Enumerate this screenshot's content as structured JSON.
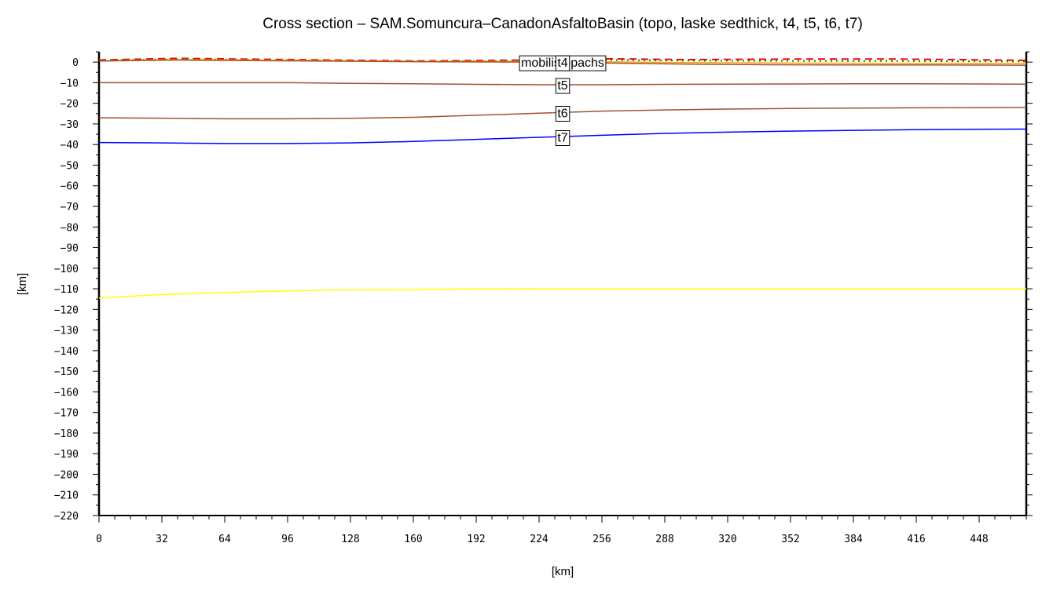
{
  "chart_data": {
    "type": "line",
    "title": "Cross section – SAM.Somuncura–CanadonAsfaltoBasin (topo, laske sedthick, t4, t5, t6, t7)",
    "xlabel": "[km]",
    "ylabel": "[km]",
    "xlim": [
      0,
      472
    ],
    "ylim": [
      -220,
      5
    ],
    "x_ticks": [
      0,
      32,
      64,
      96,
      128,
      160,
      192,
      224,
      256,
      288,
      320,
      352,
      384,
      416,
      448
    ],
    "y_ticks": [
      0,
      -10,
      -20,
      -30,
      -40,
      -50,
      -60,
      -70,
      -80,
      -90,
      -100,
      -110,
      -120,
      -130,
      -140,
      -150,
      -160,
      -170,
      -180,
      -190,
      -200,
      -210,
      -220
    ],
    "x_tick_labels": [
      "0",
      "32",
      "64",
      "96",
      "128",
      "160",
      "192",
      "224",
      "256",
      "288",
      "320",
      "352",
      "384",
      "416",
      "448"
    ],
    "y_tick_labels": [
      "0",
      "−10",
      "−20",
      "−30",
      "−40",
      "−50",
      "−60",
      "−70",
      "−80",
      "−90",
      "−100",
      "−110",
      "−120",
      "−130",
      "−140",
      "−150",
      "−160",
      "−170",
      "−180",
      "−190",
      "−200",
      "−210",
      "−220"
    ],
    "grid": false,
    "series": [
      {
        "name": "",
        "color": "#ff0000",
        "dash": "dashed",
        "x": [
          0,
          40,
          100,
          160,
          224,
          260,
          300,
          360,
          400,
          440,
          472
        ],
        "y": [
          1.0,
          1.8,
          1.2,
          0.6,
          1.0,
          1.6,
          1.2,
          1.5,
          1.5,
          1.2,
          0.8
        ]
      },
      {
        "name": "",
        "color": "#008000",
        "dash": "dotted",
        "x": [
          0,
          40,
          100,
          160,
          224,
          260,
          300,
          360,
          400,
          440,
          472
        ],
        "y": [
          0.8,
          1.4,
          0.9,
          0.4,
          0.6,
          1.0,
          0.7,
          0.6,
          0.5,
          0.4,
          0.3
        ]
      },
      {
        "name": "",
        "color": "#ffa500",
        "dash": "solid",
        "x": [
          0,
          40,
          100,
          160,
          224,
          260,
          300,
          360,
          400,
          440,
          472
        ],
        "y": [
          0.6,
          1.2,
          0.8,
          0.3,
          0.3,
          0.1,
          -0.2,
          -0.5,
          -0.6,
          -0.6,
          -0.6
        ]
      },
      {
        "name": "t4",
        "color": "#a0522d",
        "dash": "solid",
        "x": [
          0,
          40,
          100,
          160,
          224,
          260,
          300,
          340,
          380,
          420,
          472
        ],
        "y": [
          0.5,
          1.0,
          0.6,
          0.2,
          0.0,
          -0.5,
          -1.0,
          -1.3,
          -1.4,
          -1.4,
          -1.5
        ]
      },
      {
        "name": "t5",
        "color": "#a0522d",
        "dash": "solid",
        "x": [
          0,
          64,
          96,
          128,
          160,
          192,
          224,
          256,
          288,
          320,
          352,
          384,
          416,
          448,
          472
        ],
        "y": [
          -10,
          -10,
          -10,
          -10.3,
          -10.5,
          -10.8,
          -11,
          -11,
          -10.8,
          -10.7,
          -10.6,
          -10.5,
          -10.5,
          -10.6,
          -10.7
        ]
      },
      {
        "name": "t6",
        "color": "#a0522d",
        "dash": "solid",
        "x": [
          0,
          32,
          64,
          96,
          128,
          160,
          192,
          224,
          256,
          288,
          320,
          352,
          384,
          416,
          448,
          472
        ],
        "y": [
          -27,
          -27.2,
          -27.5,
          -27.5,
          -27.3,
          -26.8,
          -25.8,
          -24.8,
          -23.8,
          -23.2,
          -22.8,
          -22.5,
          -22.3,
          -22.2,
          -22.1,
          -22.0
        ]
      },
      {
        "name": "t7",
        "color": "#0000ff",
        "dash": "solid",
        "x": [
          0,
          32,
          64,
          96,
          128,
          160,
          192,
          224,
          256,
          288,
          320,
          352,
          384,
          416,
          448,
          472
        ],
        "y": [
          -39,
          -39.2,
          -39.5,
          -39.5,
          -39.2,
          -38.5,
          -37.5,
          -36.5,
          -35.5,
          -34.6,
          -34.0,
          -33.5,
          -33.1,
          -32.8,
          -32.6,
          -32.5
        ]
      },
      {
        "name": "",
        "color": "#ffff00",
        "dash": "solid",
        "x": [
          0,
          16,
          32,
          64,
          96,
          128,
          160,
          192,
          224,
          256,
          288,
          320,
          352,
          384,
          416,
          448,
          472
        ],
        "y": [
          -114.5,
          -113.6,
          -112.8,
          -111.8,
          -111.0,
          -110.5,
          -110.3,
          -110.1,
          -110.0,
          -110.0,
          -110.0,
          -110.0,
          -110.0,
          -110.0,
          -110.0,
          -110.0,
          -110.0
        ]
      }
    ],
    "annotations": [
      {
        "text": "mobilis/epachs",
        "x": 236,
        "y": 0
      },
      {
        "text": "t4",
        "x": 236,
        "y": 0
      },
      {
        "text": "t5",
        "x": 236,
        "y": -11
      },
      {
        "text": "t6",
        "x": 236,
        "y": -24.5
      },
      {
        "text": "t7",
        "x": 236,
        "y": -36.3
      }
    ]
  }
}
